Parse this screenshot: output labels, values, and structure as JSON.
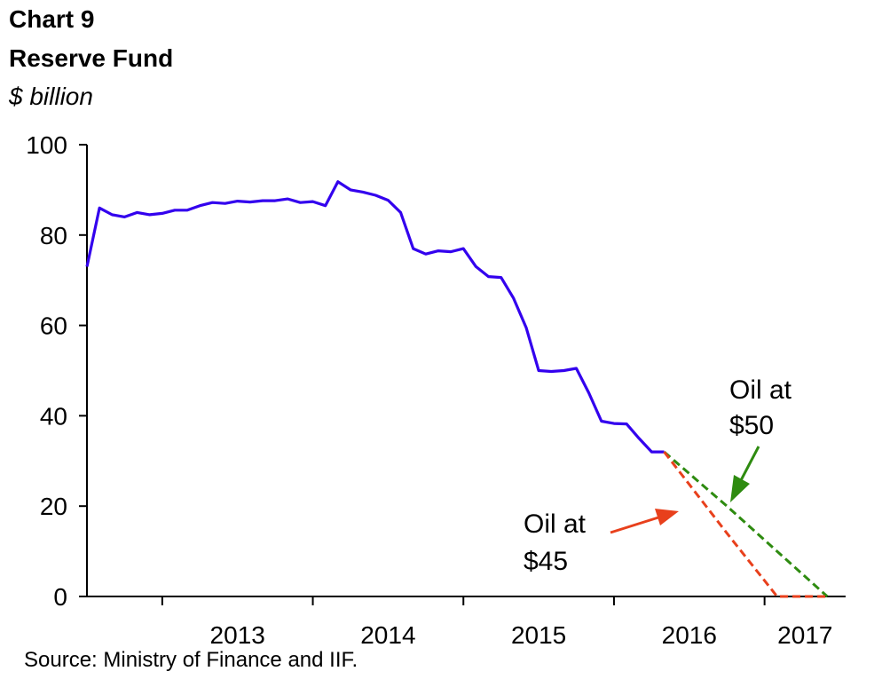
{
  "header": {
    "title": "Chart 9",
    "subtitle": "Reserve Fund",
    "unit": "$ billion"
  },
  "source": "Source: Ministry of Finance and IIF.",
  "colors": {
    "actual": "#3300ee",
    "oil50": "#2e8b10",
    "oil45": "#e8401c",
    "axis": "#000000"
  },
  "chart_data": {
    "type": "line",
    "title": "Reserve Fund",
    "ylabel": "$ billion",
    "ylim": [
      0,
      100
    ],
    "xlim": [
      "2012-07-01",
      "2017-07-15"
    ],
    "yticks": [
      0,
      20,
      40,
      60,
      80,
      100
    ],
    "xtick_labels": [
      "2013",
      "2014",
      "2015",
      "2016",
      "2017"
    ],
    "grid": false,
    "series": [
      {
        "name": "",
        "style": "solid",
        "color": "#3300ee",
        "x": [
          "2012-07",
          "2012-08",
          "2012-09",
          "2012-10",
          "2012-11",
          "2012-12",
          "2013-01",
          "2013-02",
          "2013-03",
          "2013-04",
          "2013-05",
          "2013-06",
          "2013-07",
          "2013-08",
          "2013-09",
          "2013-10",
          "2013-11",
          "2013-12",
          "2014-01",
          "2014-02",
          "2014-03",
          "2014-04",
          "2014-05",
          "2014-06",
          "2014-07",
          "2014-08",
          "2014-09",
          "2014-10",
          "2014-11",
          "2014-12",
          "2015-01",
          "2015-02",
          "2015-03",
          "2015-04",
          "2015-05",
          "2015-06",
          "2015-07",
          "2015-08",
          "2015-09",
          "2015-10",
          "2015-11",
          "2015-12",
          "2016-01",
          "2016-02",
          "2016-03",
          "2016-04",
          "2016-05"
        ],
        "y": [
          73,
          86,
          84.5,
          84,
          85,
          84.5,
          84.8,
          85.5,
          85.5,
          86.5,
          87.2,
          87,
          87.5,
          87.3,
          87.6,
          87.6,
          88,
          87.2,
          87.4,
          86.5,
          91.8,
          90,
          89.5,
          88.8,
          87.7,
          85,
          77,
          75.8,
          76.5,
          76.3,
          77,
          73,
          70.8,
          70.6,
          66,
          59.5,
          50,
          49.8,
          50,
          50.5,
          45,
          38.8,
          38.3,
          38.2,
          35,
          32,
          32
        ]
      },
      {
        "name": "Oil at $50",
        "style": "dashed",
        "color": "#2e8b10",
        "x": [
          "2016-05",
          "2016-10",
          "2017-06"
        ],
        "y": [
          32,
          20,
          0
        ]
      },
      {
        "name": "Oil at $45",
        "style": "dashed",
        "color": "#e8401c",
        "x": [
          "2016-05",
          "2016-10",
          "2017-02",
          "2017-06"
        ],
        "y": [
          32,
          14,
          0,
          0
        ]
      }
    ],
    "annotations": [
      {
        "series": "Oil at $50",
        "lines": [
          "Oil at",
          "$50"
        ]
      },
      {
        "series": "Oil at $45",
        "lines": [
          "Oil at",
          "$45"
        ]
      }
    ]
  }
}
